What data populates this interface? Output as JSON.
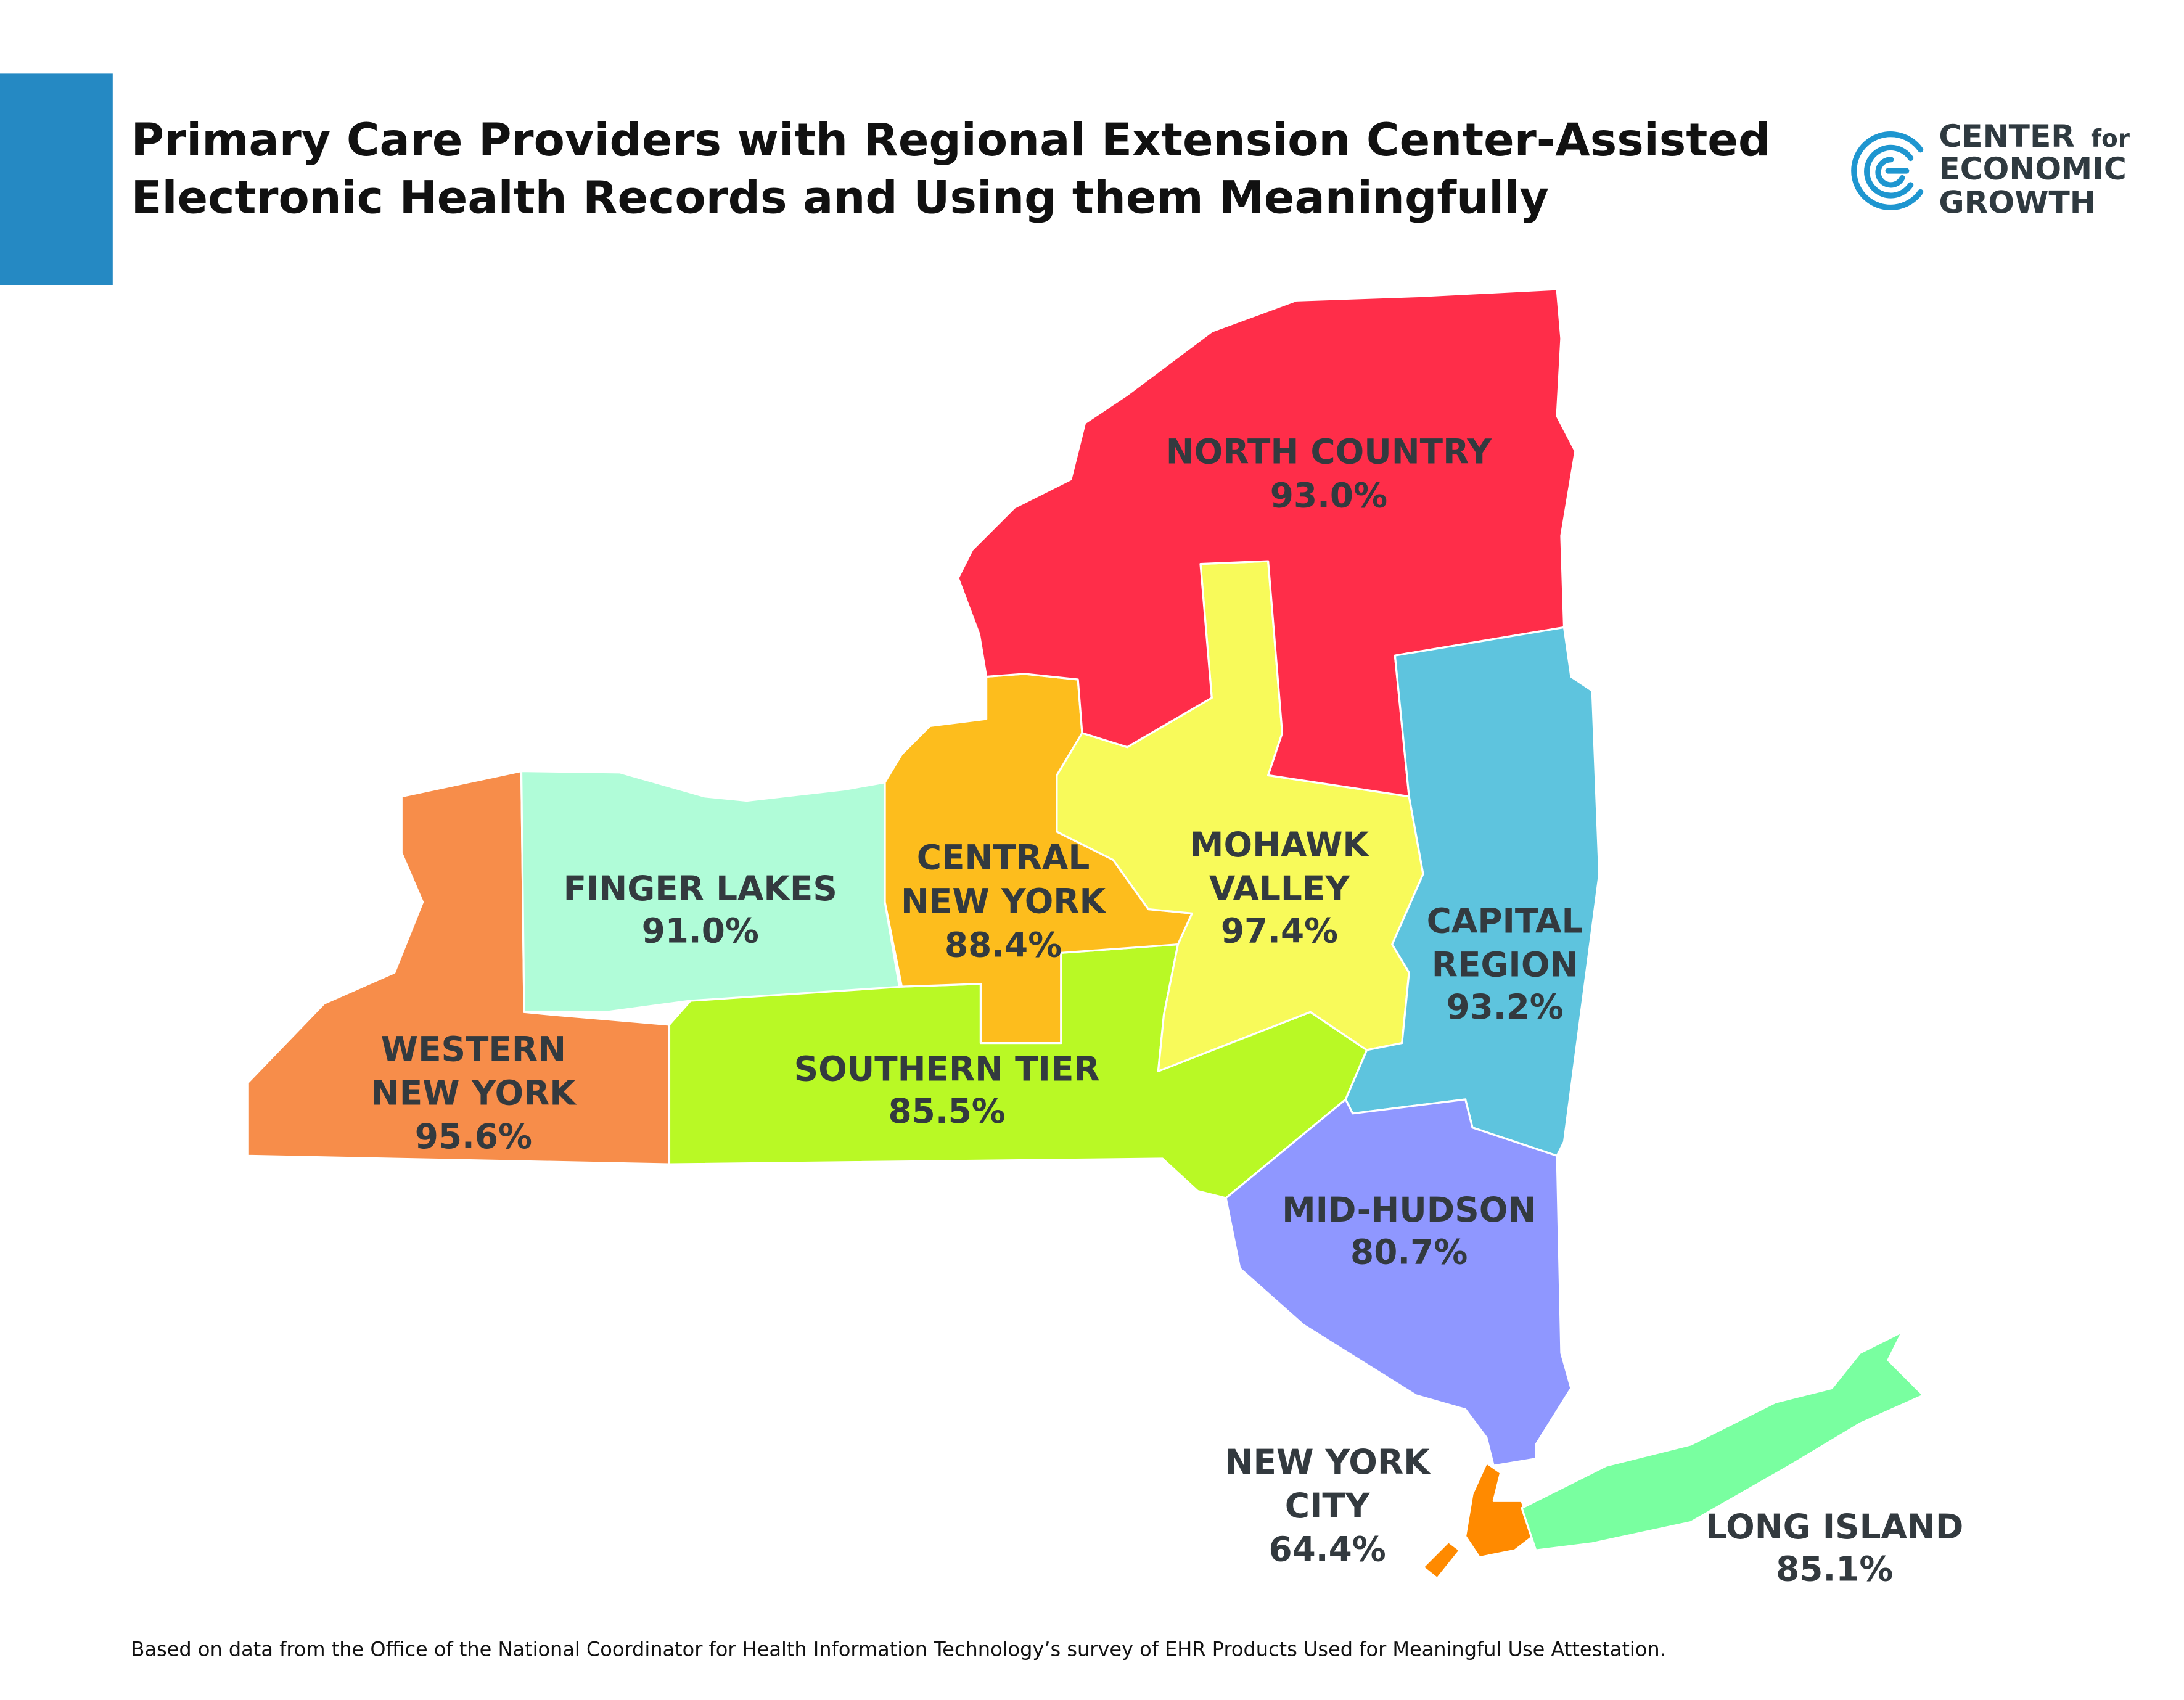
{
  "header": {
    "title_line1": "Primary Care Providers with Regional Extension Center-Assisted",
    "title_line2": "Electronic Health Records and Using them Meaningfully",
    "accent_color": "#2589C3"
  },
  "logo": {
    "line1": "CENTER",
    "line1_small": "for",
    "line2": "ECONOMIC",
    "line3": "GROWTH",
    "color": "#1E96D0"
  },
  "map": {
    "regions": [
      {
        "id": "north-country",
        "name": [
          "NORTH COUNTRY"
        ],
        "value": "93.0%",
        "color": "#FF2D49"
      },
      {
        "id": "finger-lakes",
        "name": [
          "FINGER LAKES"
        ],
        "value": "91.0%",
        "color": "#B0FCD8"
      },
      {
        "id": "central-new-york",
        "name": [
          "CENTRAL",
          "NEW YORK"
        ],
        "value": "88.4%",
        "color": "#FDBD1D"
      },
      {
        "id": "mohawk-valley",
        "name": [
          "MOHAWK",
          "VALLEY"
        ],
        "value": "97.4%",
        "color": "#F8FA5A"
      },
      {
        "id": "capital-region",
        "name": [
          "CAPITAL",
          "REGION"
        ],
        "value": "93.2%",
        "color": "#5EC4DE"
      },
      {
        "id": "western-new-york",
        "name": [
          "WESTERN",
          "NEW YORK"
        ],
        "value": "95.6%",
        "color": "#F78D4A"
      },
      {
        "id": "southern-tier",
        "name": [
          "SOUTHERN TIER"
        ],
        "value": "85.5%",
        "color": "#B9F925"
      },
      {
        "id": "mid-hudson",
        "name": [
          "MID-HUDSON"
        ],
        "value": "80.7%",
        "color": "#8F97FF"
      },
      {
        "id": "new-york-city",
        "name": [
          "NEW YORK",
          "CITY"
        ],
        "value": "64.4%",
        "color": "#FF8A00"
      },
      {
        "id": "long-island",
        "name": [
          "LONG ISLAND"
        ],
        "value": "85.1%",
        "color": "#79FFA0"
      }
    ]
  },
  "footer": {
    "source": "Based on data from the Office of the National Coordinator for Health Information Technology’s survey of EHR Products Used for Meaningful Use Attestation."
  }
}
